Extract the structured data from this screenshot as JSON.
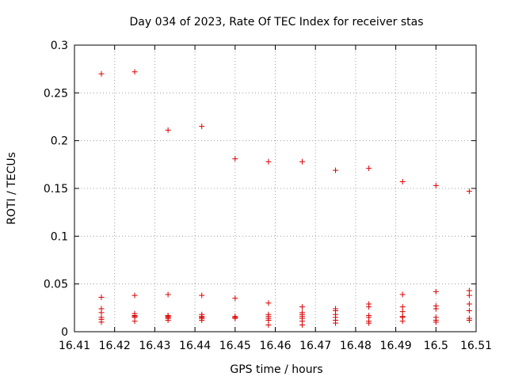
{
  "chart_data": {
    "type": "scatter",
    "title": "Day 034 of 2023, Rate Of TEC Index for receiver stas",
    "xlabel": "GPS time / hours",
    "ylabel": "ROTI / TECUs",
    "xlim": [
      16.41,
      16.51
    ],
    "ylim": [
      0,
      0.3
    ],
    "xticks": [
      "16.41",
      "16.42",
      "16.43",
      "16.44",
      "16.45",
      "16.46",
      "16.47",
      "16.48",
      "16.49",
      "16.5",
      "16.51"
    ],
    "yticks": [
      "0",
      "0.05",
      "0.1",
      "0.15",
      "0.2",
      "0.25",
      "0.3"
    ],
    "grid": true,
    "marker": "+",
    "series": [
      {
        "name": "ROTI",
        "color": "#dd0000",
        "points": [
          [
            16.4167,
            0.27
          ],
          [
            16.4167,
            0.036
          ],
          [
            16.4167,
            0.024
          ],
          [
            16.4167,
            0.02
          ],
          [
            16.4167,
            0.015
          ],
          [
            16.4167,
            0.013
          ],
          [
            16.4167,
            0.01
          ],
          [
            16.425,
            0.272
          ],
          [
            16.425,
            0.038
          ],
          [
            16.425,
            0.019
          ],
          [
            16.425,
            0.017
          ],
          [
            16.425,
            0.016
          ],
          [
            16.425,
            0.015
          ],
          [
            16.425,
            0.011
          ],
          [
            16.4333,
            0.211
          ],
          [
            16.4333,
            0.039
          ],
          [
            16.4333,
            0.017
          ],
          [
            16.4333,
            0.016
          ],
          [
            16.4333,
            0.015
          ],
          [
            16.4333,
            0.014
          ],
          [
            16.4333,
            0.012
          ],
          [
            16.4417,
            0.215
          ],
          [
            16.4417,
            0.038
          ],
          [
            16.4417,
            0.018
          ],
          [
            16.4417,
            0.016
          ],
          [
            16.4417,
            0.015
          ],
          [
            16.4417,
            0.014
          ],
          [
            16.4417,
            0.012
          ],
          [
            16.45,
            0.181
          ],
          [
            16.45,
            0.035
          ],
          [
            16.45,
            0.016
          ],
          [
            16.45,
            0.015
          ],
          [
            16.45,
            0.014
          ],
          [
            16.4583,
            0.178
          ],
          [
            16.4583,
            0.03
          ],
          [
            16.4583,
            0.018
          ],
          [
            16.4583,
            0.016
          ],
          [
            16.4583,
            0.014
          ],
          [
            16.4583,
            0.012
          ],
          [
            16.4583,
            0.007
          ],
          [
            16.4667,
            0.178
          ],
          [
            16.4667,
            0.026
          ],
          [
            16.4667,
            0.02
          ],
          [
            16.4667,
            0.018
          ],
          [
            16.4667,
            0.016
          ],
          [
            16.4667,
            0.014
          ],
          [
            16.4667,
            0.011
          ],
          [
            16.4667,
            0.007
          ],
          [
            16.475,
            0.169
          ],
          [
            16.475,
            0.024
          ],
          [
            16.475,
            0.022
          ],
          [
            16.475,
            0.018
          ],
          [
            16.475,
            0.015
          ],
          [
            16.475,
            0.012
          ],
          [
            16.475,
            0.009
          ],
          [
            16.4833,
            0.171
          ],
          [
            16.4833,
            0.029
          ],
          [
            16.4833,
            0.026
          ],
          [
            16.4833,
            0.017
          ],
          [
            16.4833,
            0.015
          ],
          [
            16.4833,
            0.011
          ],
          [
            16.4833,
            0.009
          ],
          [
            16.4917,
            0.157
          ],
          [
            16.4917,
            0.039
          ],
          [
            16.4917,
            0.026
          ],
          [
            16.4917,
            0.021
          ],
          [
            16.4917,
            0.016
          ],
          [
            16.4917,
            0.015
          ],
          [
            16.4917,
            0.011
          ],
          [
            16.5,
            0.153
          ],
          [
            16.5,
            0.042
          ],
          [
            16.5,
            0.027
          ],
          [
            16.5,
            0.024
          ],
          [
            16.5,
            0.015
          ],
          [
            16.5,
            0.012
          ],
          [
            16.5,
            0.01
          ],
          [
            16.5083,
            0.147
          ],
          [
            16.5083,
            0.043
          ],
          [
            16.5083,
            0.038
          ],
          [
            16.5083,
            0.029
          ],
          [
            16.5083,
            0.022
          ],
          [
            16.5083,
            0.014
          ],
          [
            16.5083,
            0.012
          ]
        ]
      }
    ]
  }
}
